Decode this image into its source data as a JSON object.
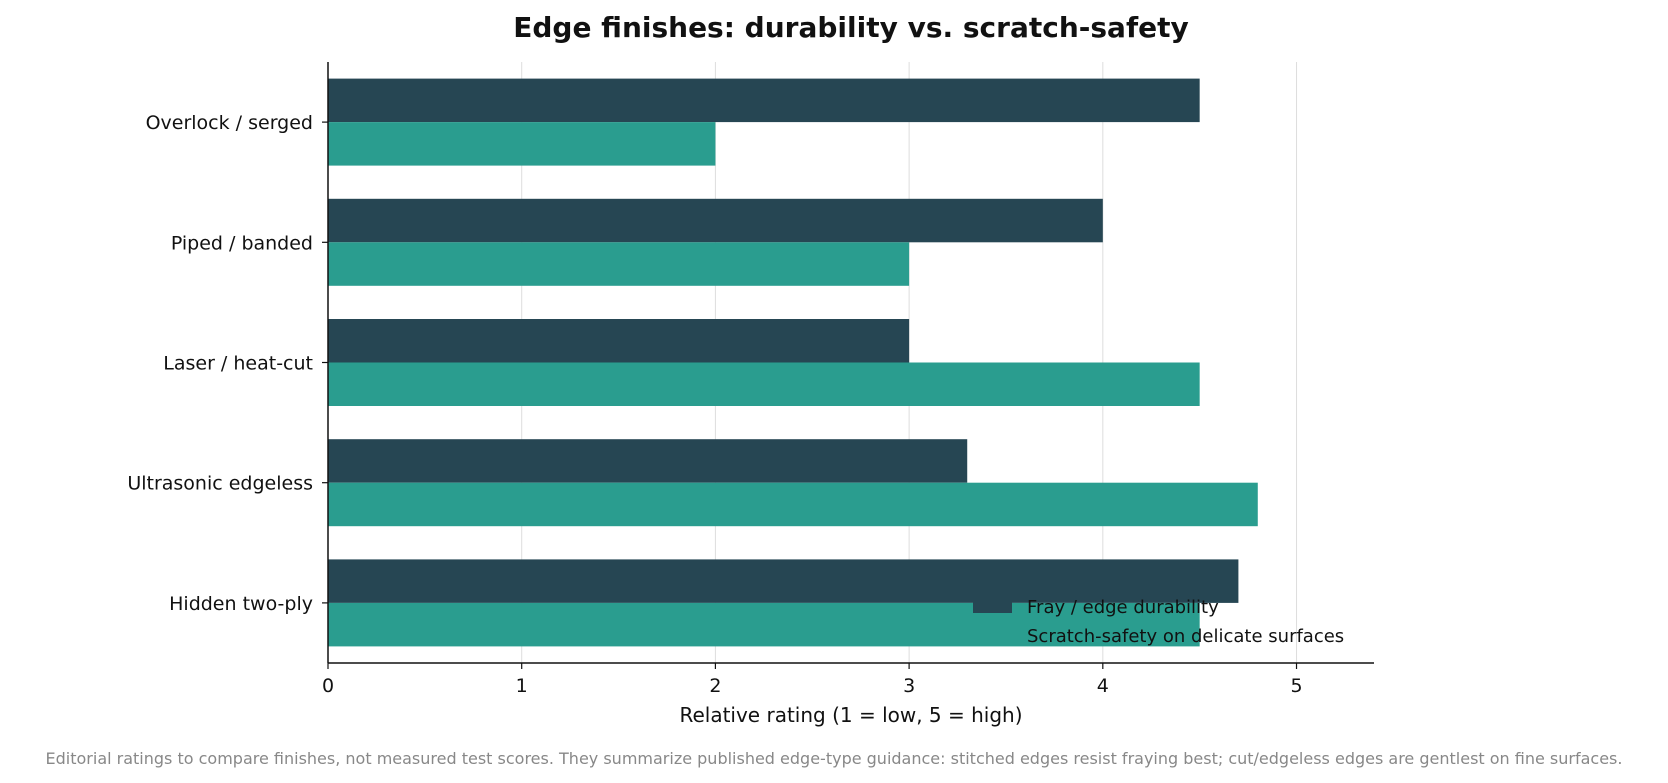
{
  "colors": {
    "durability": "#264653",
    "scratch_safety": "#2a9d8f",
    "grid": "#dddddd",
    "axis": "#111111",
    "note": "#888888"
  },
  "chart_data": {
    "type": "bar",
    "orientation": "horizontal",
    "title": "Edge finishes: durability vs. scratch-safety",
    "xlabel": "Relative rating (1 = low, 5 = high)",
    "ylabel": "",
    "categories": [
      "Overlock / serged",
      "Piped / banded",
      "Laser / heat-cut",
      "Ultrasonic edgeless",
      "Hidden two-ply"
    ],
    "series": [
      {
        "name": "Fray / edge durability",
        "values": [
          4.5,
          4.0,
          3.0,
          3.3,
          4.7
        ]
      },
      {
        "name": "Scratch-safety on delicate surfaces",
        "values": [
          2.0,
          3.0,
          4.5,
          4.8,
          4.5
        ]
      }
    ],
    "xlim": [
      0,
      5.4
    ],
    "xticks": [
      "0",
      "1",
      "2",
      "3",
      "4",
      "5"
    ],
    "grid": "vertical",
    "legend_position": "lower-right",
    "note": "Editorial ratings to compare finishes, not measured test scores. They summarize published edge-type guidance: stitched edges resist fraying best; cut/edgeless edges are gentlest on fine surfaces."
  }
}
